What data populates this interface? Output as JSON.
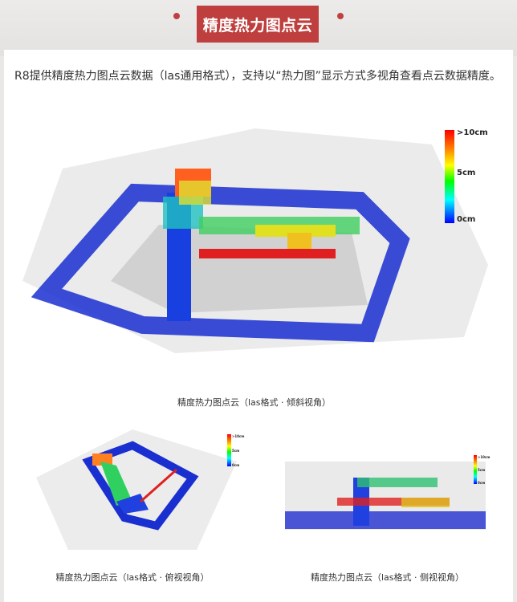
{
  "header": {
    "title": "精度热力图点云"
  },
  "intro": "R8提供精度热力图点云数据（las通用格式），支持以“热力图”显示方式多视角查看点云数据精度。",
  "legend": {
    "max": ">10cm",
    "mid": "5cm",
    "min": "0cm",
    "colors": [
      "#ff0000",
      "#ffff00",
      "#00ff00",
      "#00ffff",
      "#0000ff"
    ]
  },
  "figures": [
    {
      "caption": "精度热力图点云（las格式 · 倾斜视角）"
    },
    {
      "caption": "精度热力图点云（las格式 · 俯视视角）"
    },
    {
      "caption": "精度热力图点云（las格式 · 侧视视角）"
    }
  ]
}
